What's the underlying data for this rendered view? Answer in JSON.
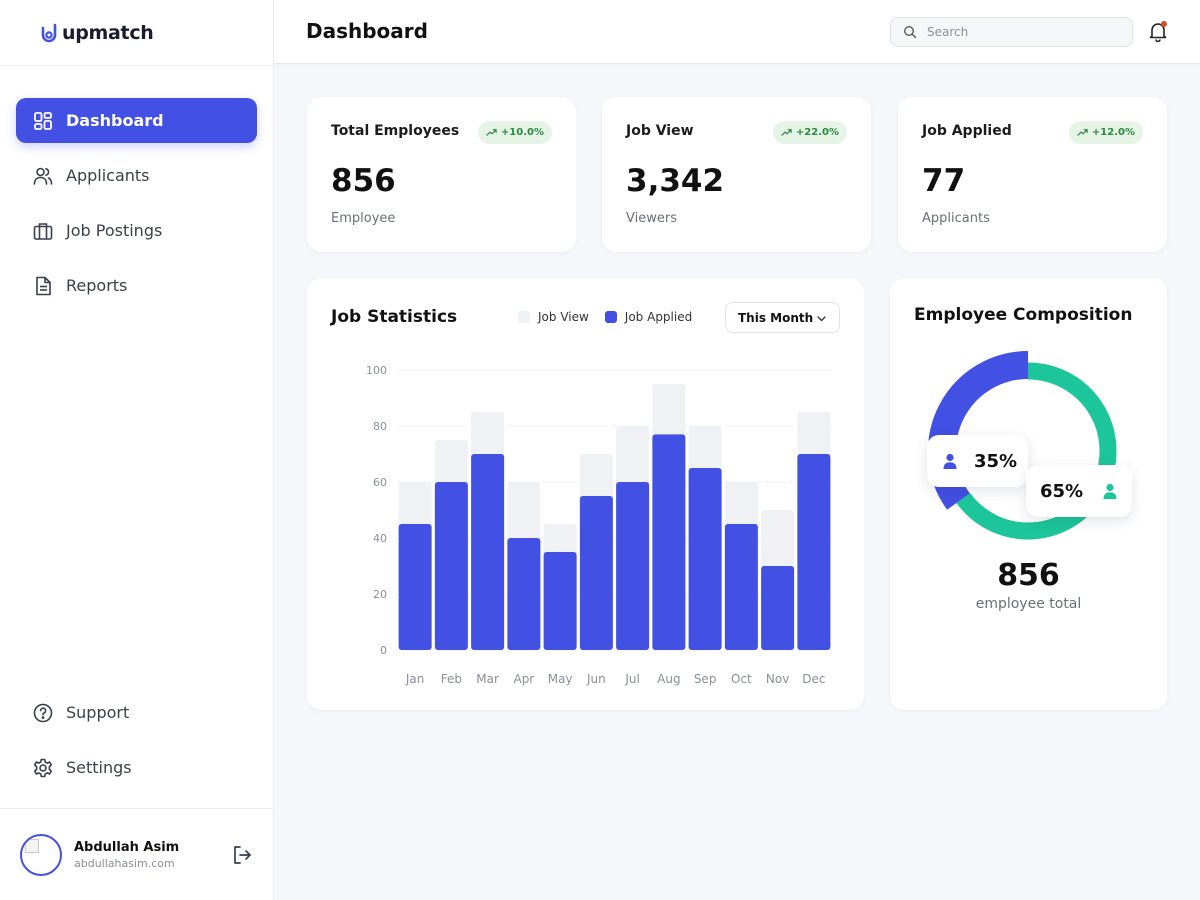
{
  "app": {
    "brand": "upmatch",
    "accent": "#4350e4",
    "secondary": "#1dc59a"
  },
  "sidebar": {
    "items": [
      {
        "label": "Dashboard",
        "icon": "dashboard-grid-icon",
        "active": true
      },
      {
        "label": "Applicants",
        "icon": "users-icon",
        "active": false
      },
      {
        "label": "Job Postings",
        "icon": "briefcase-icon",
        "active": false
      },
      {
        "label": "Reports",
        "icon": "document-icon",
        "active": false
      }
    ],
    "bottom_items": [
      {
        "label": "Support",
        "icon": "help-circle-icon"
      },
      {
        "label": "Settings",
        "icon": "gear-icon"
      }
    ],
    "user": {
      "name": "Abdullah Asim",
      "email": "abdullahasim.com"
    }
  },
  "header": {
    "title": "Dashboard",
    "search_placeholder": "Search"
  },
  "stats": [
    {
      "title": "Total Employees",
      "badge": "+10.0%",
      "value": "856",
      "sub": "Employee"
    },
    {
      "title": "Job View",
      "badge": "+22.0%",
      "value": "3,342",
      "sub": "Viewers"
    },
    {
      "title": "Job Applied",
      "badge": "+12.0%",
      "value": "77",
      "sub": "Applicants"
    }
  ],
  "job_statistics": {
    "title": "Job Statistics",
    "legend": [
      {
        "name": "Job View",
        "color": "#f0f1f5"
      },
      {
        "name": "Job Applied",
        "color": "#4350e4"
      }
    ],
    "period": "This Month"
  },
  "chart_data": {
    "type": "bar",
    "categories": [
      "Jan",
      "Feb",
      "Mar",
      "Apr",
      "May",
      "Jun",
      "Jul",
      "Aug",
      "Sep",
      "Oct",
      "Nov",
      "Dec"
    ],
    "series": [
      {
        "name": "Job View",
        "values": [
          60,
          75,
          85,
          60,
          45,
          70,
          80,
          95,
          80,
          60,
          50,
          85
        ]
      },
      {
        "name": "Job Applied",
        "values": [
          45,
          60,
          70,
          40,
          35,
          55,
          60,
          77,
          65,
          45,
          30,
          70
        ]
      }
    ],
    "yticks": [
      0,
      20,
      40,
      60,
      80,
      100
    ],
    "ylim": [
      0,
      100
    ],
    "grid": true
  },
  "composition": {
    "title": "Employee Composition",
    "segments": [
      {
        "label": "35%",
        "value": 35,
        "color": "#4350e4",
        "icon": "user-icon"
      },
      {
        "label": "65%",
        "value": 65,
        "color": "#1dc59a",
        "icon": "user-icon"
      }
    ],
    "total": "856",
    "total_label": "employee total"
  }
}
